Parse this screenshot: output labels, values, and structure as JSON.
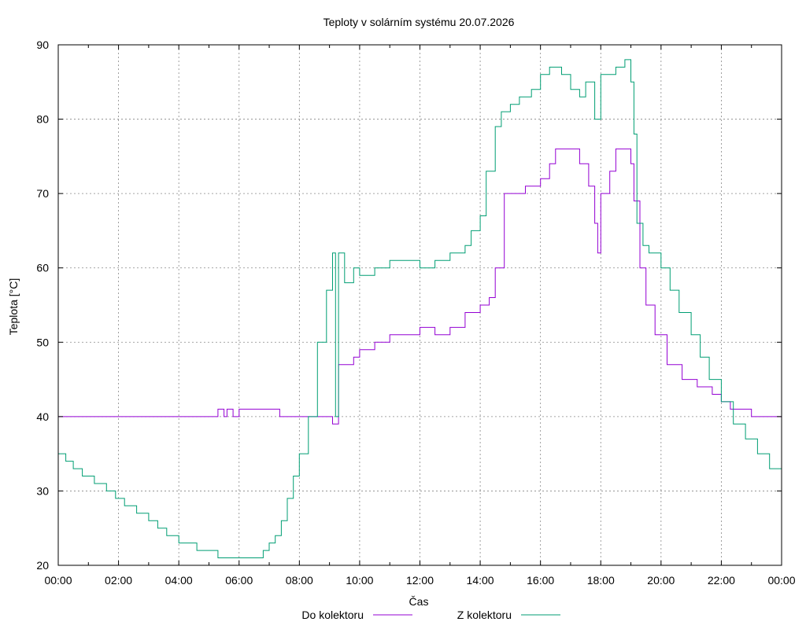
{
  "chart_data": {
    "type": "line",
    "title": "Teploty v solárním systému 20.07.2026",
    "xlabel": "Čas",
    "ylabel": "Teplota [°C]",
    "xlim": [
      0,
      24
    ],
    "ylim": [
      20,
      90
    ],
    "grid": true,
    "legend_position": "bottom",
    "x_tick_labels": [
      "00:00",
      "02:00",
      "04:00",
      "06:00",
      "08:00",
      "10:00",
      "12:00",
      "14:00",
      "16:00",
      "18:00",
      "20:00",
      "22:00",
      "00:00"
    ],
    "y_tick_labels": [
      "20",
      "30",
      "40",
      "50",
      "60",
      "70",
      "80",
      "90"
    ],
    "series": [
      {
        "name": "Do kolektoru",
        "color": "#9400d3",
        "x": [
          0,
          5.3,
          5.3,
          5.5,
          5.6,
          5.8,
          6.0,
          7.0,
          7.3,
          7.35,
          9.1,
          9.1,
          9.3,
          9.3,
          9.5,
          9.8,
          10.0,
          10.5,
          11.0,
          11.5,
          12.0,
          12.5,
          13.0,
          13.5,
          14.0,
          14.3,
          14.5,
          14.8,
          15.5,
          15.8,
          16.0,
          16.3,
          16.5,
          17.0,
          17.3,
          17.6,
          17.8,
          17.9,
          18.0,
          18.3,
          18.5,
          18.8,
          19.0,
          19.1,
          19.3,
          19.5,
          19.8,
          20.2,
          20.7,
          21.2,
          21.7,
          22.0,
          22.3,
          23.0,
          24.0
        ],
        "y": [
          40,
          40,
          41,
          40,
          41,
          40,
          41,
          41,
          41,
          40,
          40,
          39,
          40,
          47,
          47,
          48,
          49,
          50,
          51,
          51,
          52,
          51,
          52,
          54,
          55,
          56,
          60,
          70,
          71,
          71,
          72,
          74,
          76,
          76,
          74,
          71,
          66,
          62,
          70,
          73,
          76,
          76,
          74,
          69,
          60,
          55,
          51,
          47,
          45,
          44,
          43,
          42,
          41,
          40,
          39
        ]
      },
      {
        "name": "Z kolektoru",
        "color": "#009e73",
        "x": [
          0,
          0.25,
          0.5,
          0.8,
          1.2,
          1.6,
          1.9,
          2.2,
          2.6,
          3.0,
          3.3,
          3.6,
          4.0,
          4.6,
          5.0,
          5.3,
          5.8,
          6.3,
          6.6,
          6.8,
          7.0,
          7.2,
          7.4,
          7.6,
          7.8,
          8.0,
          8.3,
          8.6,
          8.9,
          9.1,
          9.2,
          9.3,
          9.5,
          9.8,
          10.0,
          10.5,
          11.0,
          11.5,
          12.0,
          12.5,
          13.0,
          13.5,
          13.7,
          14.0,
          14.2,
          14.5,
          14.7,
          15.0,
          15.3,
          15.7,
          16.0,
          16.3,
          16.5,
          16.7,
          17.0,
          17.3,
          17.5,
          17.8,
          18.0,
          18.3,
          18.5,
          18.8,
          19.0,
          19.1,
          19.2,
          19.4,
          19.6,
          20.0,
          20.3,
          20.6,
          21.0,
          21.3,
          21.6,
          22.0,
          22.4,
          22.8,
          23.2,
          23.6,
          24.0
        ],
        "y": [
          35,
          34,
          33,
          32,
          31,
          30,
          29,
          28,
          27,
          26,
          25,
          24,
          23,
          22,
          22,
          21,
          21,
          21,
          21,
          22,
          23,
          24,
          26,
          29,
          32,
          35,
          40,
          50,
          57,
          62,
          40,
          62,
          58,
          60,
          59,
          60,
          61,
          61,
          60,
          61,
          62,
          63,
          65,
          67,
          73,
          79,
          81,
          82,
          83,
          84,
          86,
          87,
          87,
          86,
          84,
          83,
          85,
          80,
          86,
          86,
          87,
          88,
          85,
          78,
          66,
          63,
          62,
          60,
          57,
          54,
          51,
          48,
          45,
          42,
          39,
          37,
          35,
          33,
          31
        ]
      }
    ]
  }
}
